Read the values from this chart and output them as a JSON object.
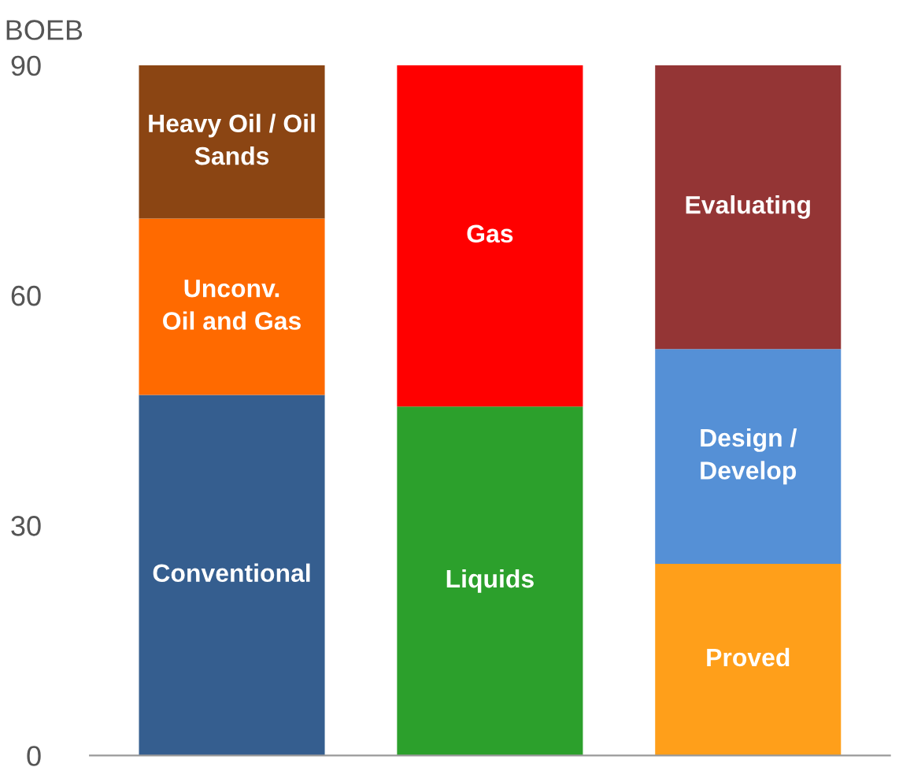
{
  "chart_data": {
    "type": "bar",
    "stacked": true,
    "ylabel": "BOEB",
    "categories": [
      null,
      null,
      null
    ],
    "series": [
      {
        "colors": [
          "#355e8f",
          "#2ca02c",
          "#ff9f1a"
        ],
        "values": [
          47,
          45.5,
          25
        ],
        "value_labels": [
          "Conventional",
          "Liquids",
          "Proved"
        ]
      },
      {
        "colors": [
          "#ff6a00",
          "#ff0000",
          "#5590d6"
        ],
        "values": [
          23,
          44.5,
          28
        ],
        "value_labels": [
          "Unconv.\nOil and Gas",
          "Gas",
          "Design /\nDevelop"
        ]
      },
      {
        "colors": [
          "#8b4513",
          "#ff0000",
          "#943535"
        ],
        "values": [
          20,
          null,
          37
        ],
        "value_labels": [
          "Heavy Oil / Oil\nSands",
          null,
          "Evaluating"
        ]
      }
    ],
    "ylim": [
      0,
      90
    ],
    "yticks": [
      0,
      30,
      60,
      90
    ],
    "grid": false,
    "legend": false
  }
}
